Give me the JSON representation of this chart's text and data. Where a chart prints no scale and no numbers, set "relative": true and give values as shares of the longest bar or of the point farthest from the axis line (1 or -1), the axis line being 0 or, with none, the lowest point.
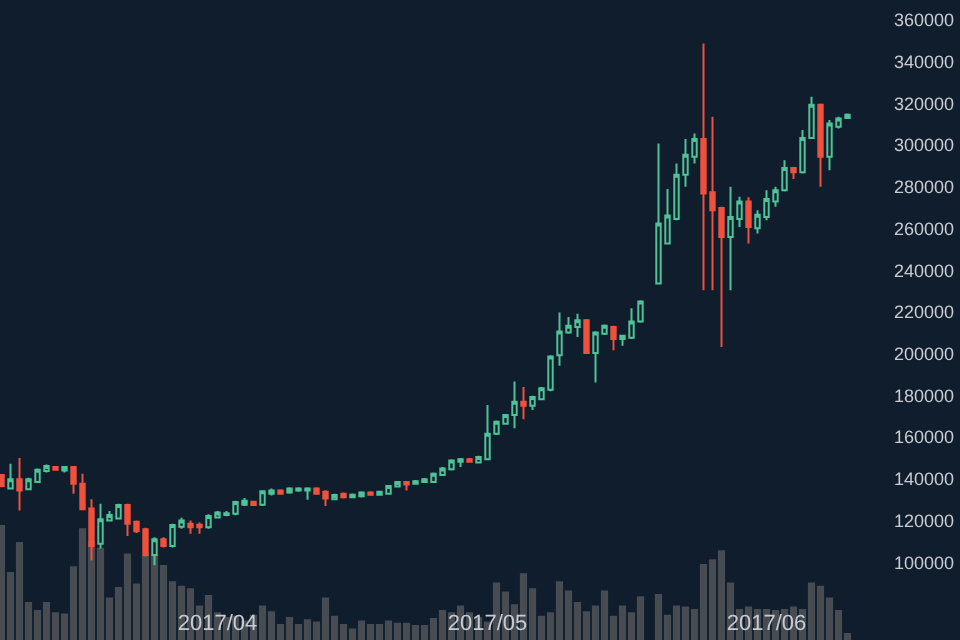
{
  "chart_data": [
    {
      "type": "candlestick",
      "x": [
        "2017-03-08",
        "2017-03-09",
        "2017-03-10",
        "2017-03-11",
        "2017-03-12",
        "2017-03-13",
        "2017-03-14",
        "2017-03-15",
        "2017-03-16",
        "2017-03-17",
        "2017-03-18",
        "2017-03-19",
        "2017-03-20",
        "2017-03-21",
        "2017-03-22",
        "2017-03-23",
        "2017-03-24",
        "2017-03-25",
        "2017-03-26",
        "2017-03-27",
        "2017-03-28",
        "2017-03-29",
        "2017-03-30",
        "2017-03-31",
        "2017-04-01",
        "2017-04-02",
        "2017-04-03",
        "2017-04-04",
        "2017-04-05",
        "2017-04-06",
        "2017-04-07",
        "2017-04-08",
        "2017-04-09",
        "2017-04-10",
        "2017-04-11",
        "2017-04-12",
        "2017-04-13",
        "2017-04-14",
        "2017-04-15",
        "2017-04-16",
        "2017-04-17",
        "2017-04-18",
        "2017-04-19",
        "2017-04-20",
        "2017-04-21",
        "2017-04-22",
        "2017-04-23",
        "2017-04-24",
        "2017-04-25",
        "2017-04-26",
        "2017-04-27",
        "2017-04-28",
        "2017-04-29",
        "2017-04-30",
        "2017-05-01",
        "2017-05-02",
        "2017-05-03",
        "2017-05-04",
        "2017-05-05",
        "2017-05-06",
        "2017-05-07",
        "2017-05-08",
        "2017-05-09",
        "2017-05-10",
        "2017-05-11",
        "2017-05-12",
        "2017-05-13",
        "2017-05-14",
        "2017-05-15",
        "2017-05-16",
        "2017-05-17",
        "2017-05-18",
        "2017-05-20",
        "2017-05-21",
        "2017-05-22",
        "2017-05-23",
        "2017-05-24",
        "2017-05-25",
        "2017-05-26",
        "2017-05-27",
        "2017-05-28",
        "2017-05-29",
        "2017-05-30",
        "2017-05-31",
        "2017-06-01",
        "2017-06-02",
        "2017-06-03",
        "2017-06-04",
        "2017-06-05",
        "2017-06-06",
        "2017-06-07",
        "2017-06-08",
        "2017-06-09",
        "2017-06-10"
      ],
      "ohlc": [
        [
          141800,
          142000,
          136000,
          136600
        ],
        [
          135400,
          147200,
          135400,
          139800
        ],
        [
          139800,
          150000,
          124800,
          134400
        ],
        [
          135000,
          140500,
          134500,
          139800
        ],
        [
          138500,
          145000,
          138000,
          144300
        ],
        [
          143700,
          146800,
          143000,
          146200
        ],
        [
          145600,
          146000,
          144000,
          144300
        ],
        [
          144000,
          146000,
          143000,
          145600
        ],
        [
          145600,
          146000,
          132800,
          137600
        ],
        [
          137600,
          142400,
          125400,
          125400
        ],
        [
          125800,
          130200,
          100800,
          107800
        ],
        [
          108800,
          128000,
          106600,
          120600
        ],
        [
          120000,
          124500,
          119500,
          122600
        ],
        [
          121000,
          128000,
          120500,
          127400
        ],
        [
          127400,
          128000,
          112600,
          118400
        ],
        [
          119400,
          120000,
          114000,
          114900
        ],
        [
          115800,
          116500,
          102800,
          103400
        ],
        [
          103400,
          112000,
          98600,
          111000
        ],
        [
          111000,
          112000,
          107000,
          107800
        ],
        [
          107800,
          118500,
          107000,
          117800
        ],
        [
          117000,
          121300,
          116000,
          120000
        ],
        [
          118400,
          120000,
          113600,
          116800
        ],
        [
          118000,
          119000,
          113600,
          116800
        ],
        [
          116800,
          123000,
          116000,
          122200
        ],
        [
          121500,
          124500,
          121000,
          123800
        ],
        [
          122600,
          124500,
          122000,
          123500
        ],
        [
          123200,
          129500,
          122500,
          128900
        ],
        [
          127600,
          130800,
          127000,
          129500
        ],
        [
          129000,
          129500,
          127000,
          127400
        ],
        [
          127600,
          134500,
          127000,
          134000
        ],
        [
          132800,
          135400,
          132000,
          134400
        ],
        [
          134400,
          135000,
          132500,
          132800
        ],
        [
          133400,
          136000,
          132800,
          135400
        ],
        [
          134400,
          136000,
          133800,
          135400
        ],
        [
          134400,
          136000,
          130000,
          135400
        ],
        [
          135400,
          136000,
          132500,
          132800
        ],
        [
          133800,
          134500,
          127000,
          130600
        ],
        [
          130200,
          132800,
          130000,
          132200
        ],
        [
          132800,
          133400,
          130600,
          131200
        ],
        [
          131200,
          133000,
          130800,
          132400
        ],
        [
          131600,
          134000,
          131000,
          133400
        ],
        [
          133400,
          134000,
          132000,
          132400
        ],
        [
          132400,
          134200,
          132000,
          133800
        ],
        [
          132800,
          137000,
          132500,
          136600
        ],
        [
          136300,
          139000,
          136000,
          138500
        ],
        [
          138500,
          139000,
          134400,
          137300
        ],
        [
          137600,
          139400,
          137300,
          138800
        ],
        [
          138500,
          140400,
          138000,
          139800
        ],
        [
          138500,
          143000,
          138000,
          142400
        ],
        [
          141800,
          145600,
          141400,
          145000
        ],
        [
          144600,
          149400,
          144000,
          148800
        ],
        [
          148200,
          150000,
          145600,
          149400
        ],
        [
          149400,
          150000,
          147800,
          148200
        ],
        [
          147800,
          151000,
          147500,
          150400
        ],
        [
          149400,
          175400,
          149000,
          161600
        ],
        [
          161600,
          168000,
          161000,
          167400
        ],
        [
          166400,
          171000,
          166000,
          170600
        ],
        [
          170600,
          186600,
          164200,
          177000
        ],
        [
          177000,
          184000,
          168600,
          175000
        ],
        [
          175000,
          179800,
          173000,
          179200
        ],
        [
          178200,
          184000,
          177800,
          183400
        ],
        [
          182700,
          199300,
          182000,
          198700
        ],
        [
          199300,
          219800,
          194200,
          210600
        ],
        [
          210200,
          217600,
          209600,
          213400
        ],
        [
          212800,
          219200,
          208000,
          216000
        ],
        [
          216000,
          216600,
          199800,
          200300
        ],
        [
          200300,
          210800,
          186200,
          210200
        ],
        [
          209600,
          214000,
          209000,
          213400
        ],
        [
          212800,
          213400,
          201600,
          207000
        ],
        [
          207000,
          209000,
          203800,
          208600
        ],
        [
          207600,
          221800,
          207000,
          215400
        ],
        [
          215400,
          225600,
          214800,
          225000
        ],
        [
          233600,
          300800,
          233600,
          262400
        ],
        [
          252800,
          279000,
          252800,
          266200
        ],
        [
          264600,
          291200,
          264000,
          285800
        ],
        [
          285800,
          303000,
          280000,
          295400
        ],
        [
          294400,
          305600,
          291200,
          303000
        ],
        [
          303000,
          348800,
          230400,
          276800
        ],
        [
          277400,
          313600,
          230400,
          268800
        ],
        [
          269800,
          270400,
          203200,
          256000
        ],
        [
          256000,
          280000,
          230400,
          265600
        ],
        [
          264600,
          275200,
          260800,
          273000
        ],
        [
          273000,
          275000,
          252800,
          260800
        ],
        [
          260200,
          268800,
          257600,
          266600
        ],
        [
          265600,
          278400,
          264000,
          274200
        ],
        [
          273000,
          280000,
          270400,
          278400
        ],
        [
          278400,
          292800,
          277800,
          289000
        ],
        [
          289000,
          289000,
          283800,
          287000
        ],
        [
          287000,
          307200,
          286400,
          303400
        ],
        [
          303400,
          323200,
          303000,
          319400
        ],
        [
          319400,
          320000,
          280000,
          294400
        ],
        [
          294400,
          312000,
          288000,
          310400
        ],
        [
          308800,
          313600,
          308000,
          312800
        ],
        [
          313000,
          315200,
          312600,
          314600
        ]
      ],
      "xlim": [
        "2017-03-07T20:00",
        "2017-06-22T12:00"
      ],
      "xticks": [
        {
          "value": "2017-04-01",
          "label": "2017/04"
        },
        {
          "value": "2017-05-01",
          "label": "2017/05"
        },
        {
          "value": "2017-06-01",
          "label": "2017/06"
        }
      ],
      "ylim": [
        62700,
        369600
      ],
      "yticks": [
        100000,
        120000,
        140000,
        160000,
        180000,
        200000,
        220000,
        240000,
        260000,
        280000,
        300000,
        320000,
        340000,
        360000
      ],
      "grid": false
    },
    {
      "type": "bar",
      "relative": true,
      "tick_labels": false,
      "color": "#474b52",
      "x": [
        "2017-03-08",
        "2017-03-09",
        "2017-03-10",
        "2017-03-11",
        "2017-03-12",
        "2017-03-13",
        "2017-03-14",
        "2017-03-15",
        "2017-03-16",
        "2017-03-17",
        "2017-03-18",
        "2017-03-19",
        "2017-03-20",
        "2017-03-21",
        "2017-03-22",
        "2017-03-23",
        "2017-03-24",
        "2017-03-25",
        "2017-03-26",
        "2017-03-27",
        "2017-03-28",
        "2017-03-29",
        "2017-03-30",
        "2017-03-31",
        "2017-04-01",
        "2017-04-02",
        "2017-04-03",
        "2017-04-04",
        "2017-04-05",
        "2017-04-06",
        "2017-04-07",
        "2017-04-08",
        "2017-04-09",
        "2017-04-10",
        "2017-04-11",
        "2017-04-12",
        "2017-04-13",
        "2017-04-14",
        "2017-04-15",
        "2017-04-16",
        "2017-04-17",
        "2017-04-18",
        "2017-04-19",
        "2017-04-20",
        "2017-04-21",
        "2017-04-22",
        "2017-04-23",
        "2017-04-24",
        "2017-04-25",
        "2017-04-26",
        "2017-04-27",
        "2017-04-28",
        "2017-04-29",
        "2017-04-30",
        "2017-05-01",
        "2017-05-02",
        "2017-05-03",
        "2017-05-04",
        "2017-05-05",
        "2017-05-06",
        "2017-05-07",
        "2017-05-08",
        "2017-05-09",
        "2017-05-10",
        "2017-05-11",
        "2017-05-12",
        "2017-05-13",
        "2017-05-14",
        "2017-05-15",
        "2017-05-16",
        "2017-05-17",
        "2017-05-18",
        "2017-05-20",
        "2017-05-21",
        "2017-05-22",
        "2017-05-23",
        "2017-05-24",
        "2017-05-25",
        "2017-05-26",
        "2017-05-27",
        "2017-05-28",
        "2017-05-29",
        "2017-05-30",
        "2017-05-31",
        "2017-06-01",
        "2017-06-02",
        "2017-06-03",
        "2017-06-04",
        "2017-06-05",
        "2017-06-06",
        "2017-06-07",
        "2017-06-08",
        "2017-06-09",
        "2017-06-10"
      ],
      "values": [
        1,
        0.59,
        0.85,
        0.33,
        0.26,
        0.33,
        0.24,
        0.23,
        0.64,
        0.97,
        0.86,
        0.8,
        0.37,
        0.46,
        0.75,
        0.49,
        0.74,
        0.74,
        0.65,
        0.51,
        0.47,
        0.45,
        0.3,
        0.39,
        0.24,
        0.2,
        0.21,
        0.17,
        0.22,
        0.3,
        0.25,
        0.14,
        0.2,
        0.14,
        0.18,
        0.16,
        0.37,
        0.21,
        0.14,
        0.1,
        0.17,
        0.14,
        0.14,
        0.17,
        0.15,
        0.15,
        0.13,
        0.13,
        0.19,
        0.26,
        0.24,
        0.3,
        0.24,
        0.2,
        0.16,
        0.5,
        0.42,
        0.31,
        0.58,
        0.45,
        0.21,
        0.24,
        0.51,
        0.43,
        0.33,
        0.25,
        0.3,
        0.43,
        0.21,
        0.3,
        0.24,
        0.38,
        0.4,
        0.22,
        0.3,
        0.29,
        0.27,
        0.66,
        0.7,
        0.78,
        0.5,
        0.27,
        0.29,
        0.27,
        0.27,
        0.26,
        0.27,
        0.29,
        0.27,
        0.5,
        0.47,
        0.37,
        0.26,
        0.06
      ],
      "xlim": [
        "2017-03-07T20:00",
        "2017-06-22T12:00"
      ]
    }
  ]
}
